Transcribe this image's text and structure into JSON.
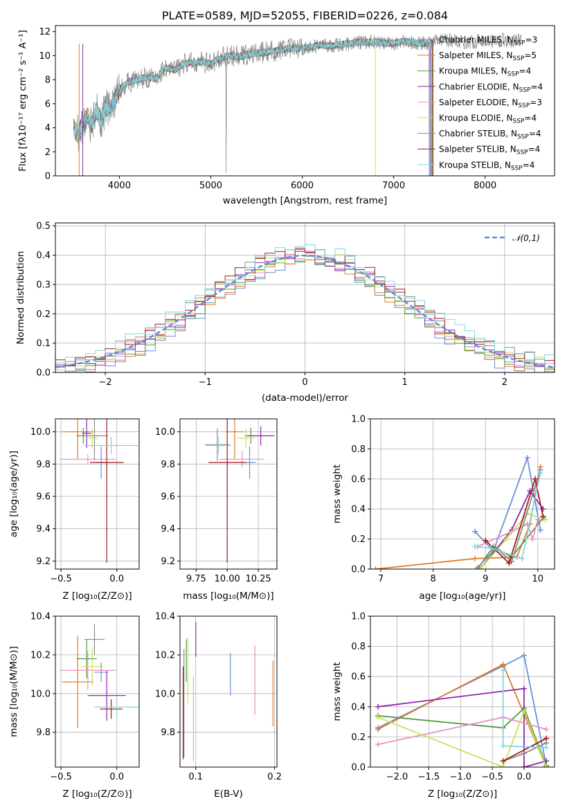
{
  "colors": [
    "#1f77b4",
    "#ff7f0e",
    "#2ca02c",
    "#d62728",
    "#9467bd",
    "#8c564b",
    "#e377c2",
    "#7f7f7f",
    "#bcbd22",
    "#17becf"
  ],
  "ssp_colors": [
    "#6b8fd8",
    "#e07b2c",
    "#4e9a3e",
    "#8e24aa",
    "#e88fc4",
    "#c8e25a",
    "#8a8a8a",
    "#a11a1a",
    "#7fd6e0"
  ],
  "chart_data": [
    {
      "id": "spectrum",
      "type": "line",
      "title": "PLATE=0589, MJD=52055, FIBERID=0226, z=0.084",
      "xlabel": "wavelength [Angstrom, rest frame]",
      "ylabel": "Flux [fλ10⁻¹⁷ erg cm⁻² s⁻¹ A⁻¹]",
      "xlim": [
        3300,
        8760
      ],
      "ylim": [
        0,
        12.5
      ],
      "xticks": [
        4000,
        5000,
        6000,
        7000,
        8000
      ],
      "yticks": [
        0,
        2,
        4,
        6,
        8,
        10,
        12
      ],
      "series": [
        {
          "name": "Chabrier MILES, N_SSP=3",
          "label_main": "Chabrier MILES, N",
          "label_sub": "SSP",
          "label_tail": "=3"
        },
        {
          "name": "Salpeter MILES, N_SSP=5",
          "label_main": "Salpeter MILES, N",
          "label_sub": "SSP",
          "label_tail": "=5"
        },
        {
          "name": "Kroupa MILES, N_SSP=4",
          "label_main": "Kroupa MILES, N",
          "label_sub": "SSP",
          "label_tail": "=4"
        },
        {
          "name": "Chabrier ELODIE, N_SSP=4",
          "label_main": "Chabrier ELODIE, N",
          "label_sub": "SSP",
          "label_tail": "=4"
        },
        {
          "name": "Salpeter ELODIE, N_SSP=3",
          "label_main": "Salpeter ELODIE, N",
          "label_sub": "SSP",
          "label_tail": "=3"
        },
        {
          "name": "Kroupa ELODIE, N_SSP=4",
          "label_main": "Kroupa ELODIE, N",
          "label_sub": "SSP",
          "label_tail": "=4"
        },
        {
          "name": "Chabrier STELIB, N_SSP=4",
          "label_main": "Chabrier STELIB, N",
          "label_sub": "SSP",
          "label_tail": "=4"
        },
        {
          "name": "Salpeter STELIB, N_SSP=4",
          "label_main": "Salpeter STELIB, N",
          "label_sub": "SSP",
          "label_tail": "=4"
        },
        {
          "name": "Kroupa STELIB, N_SSP=4",
          "label_main": "Kroupa STELIB, N",
          "label_sub": "SSP",
          "label_tail": "=4"
        }
      ],
      "data_x": [
        3500,
        3550,
        3600,
        3650,
        3700,
        3750,
        3800,
        3850,
        3900,
        3950,
        4000,
        4100,
        4200,
        4300,
        4400,
        4500,
        4600,
        4700,
        4800,
        4900,
        5000,
        5100,
        5200,
        5300,
        5400,
        5500,
        5600,
        5700,
        5800,
        5900,
        6000,
        6100,
        6200,
        6300,
        6400,
        6500,
        6600,
        6700,
        6800,
        6900,
        7000,
        7100,
        7200,
        7300,
        7400,
        7500,
        7600,
        7700,
        7800,
        7900,
        8000,
        8100,
        8200,
        8300,
        8400
      ],
      "data_y": [
        4.0,
        3.5,
        4.2,
        5.0,
        4.0,
        5.5,
        4.5,
        5.8,
        5.5,
        6.3,
        7.2,
        7.8,
        8.0,
        8.2,
        8.1,
        9.0,
        8.8,
        9.3,
        9.4,
        9.5,
        9.3,
        9.8,
        10.0,
        9.9,
        10.1,
        10.2,
        10.3,
        10.4,
        10.5,
        10.6,
        10.6,
        10.7,
        10.9,
        10.8,
        10.9,
        11.0,
        11.1,
        11.1,
        11.2,
        11.0,
        11.0,
        11.2,
        11.1,
        11.0,
        11.1,
        11.2,
        11.3,
        11.2,
        11.1,
        11.2,
        11.3,
        11.2,
        11.3,
        11.2,
        11.3
      ],
      "model_end_x": [
        7430,
        7430,
        7420,
        7410,
        7400,
        7400,
        7390,
        7430,
        7400
      ],
      "annotations": [
        {
          "text": "spike at ~5170 and ~6800"
        }
      ]
    },
    {
      "id": "residuals",
      "type": "histogram",
      "xlabel": "(data-model)/error",
      "ylabel": "Normed distribution",
      "xlim": [
        -2.5,
        2.5
      ],
      "ylim": [
        0,
        0.51
      ],
      "xticks": [
        -2,
        -1,
        0,
        1,
        2
      ],
      "yticks": [
        0.0,
        0.1,
        0.2,
        0.3,
        0.4,
        0.5
      ],
      "legend": "𝒩(0,1)",
      "bin_width": 0.1,
      "gaussian": {
        "mean": 0,
        "sigma": 1
      }
    },
    {
      "id": "age_vs_z",
      "type": "errorbar",
      "xlabel": "Z [log₁₀(Z/Z⊙)]",
      "ylabel": "age  [log₁₀(age/yr)]",
      "xlim": [
        -0.55,
        0.2
      ],
      "ylim": [
        9.15,
        10.08
      ],
      "xticks": [
        -0.5,
        0.0
      ],
      "xticklabels": [
        "−0.5",
        "0.0"
      ],
      "yticks": [
        9.2,
        9.4,
        9.6,
        9.8,
        10.0
      ],
      "points": [
        {
          "x": -0.14,
          "y": 9.81,
          "xe": 0.06,
          "ye": 0.1
        },
        {
          "x": -0.35,
          "y": 10.0,
          "xe": 0.14,
          "ye": 0.17
        },
        {
          "x": -0.3,
          "y": 9.975,
          "xe": 0.06,
          "ye": 0.05
        },
        {
          "x": -0.27,
          "y": 9.99,
          "xe": 0.04,
          "ye": 0.09
        },
        {
          "x": -0.26,
          "y": 9.83,
          "xe": 0.25,
          "ye": 0.03
        },
        {
          "x": -0.22,
          "y": 9.96,
          "xe": 0.05,
          "ye": 0.06
        },
        {
          "x": -0.2,
          "y": 9.975,
          "xe": 0.12,
          "ye": 0.15
        },
        {
          "x": -0.09,
          "y": 9.81,
          "xe": 0.15,
          "ye": 0.62
        },
        {
          "x": -0.05,
          "y": 9.915,
          "xe": 0.24,
          "ye": 0.055
        }
      ]
    },
    {
      "id": "age_vs_mass",
      "type": "errorbar",
      "xlabel": "mass [log₁₀(M/M⊙)]",
      "xlim": [
        9.62,
        10.4
      ],
      "ylim": [
        9.15,
        10.08
      ],
      "xticks": [
        9.75,
        10.0,
        10.25
      ],
      "xticklabels": [
        "9.75",
        "10.00",
        "10.25"
      ],
      "yticks": [
        9.2,
        9.4,
        9.6,
        9.8,
        10.0
      ],
      "points": [
        {
          "x": 10.18,
          "y": 9.81,
          "xe": 0.05,
          "ye": 0.1
        },
        {
          "x": 10.06,
          "y": 10.0,
          "xe": 0.07,
          "ye": 0.17
        },
        {
          "x": 10.19,
          "y": 9.975,
          "xe": 0.05,
          "ye": 0.05
        },
        {
          "x": 10.27,
          "y": 9.975,
          "xe": 0.11,
          "ye": 0.06
        },
        {
          "x": 10.12,
          "y": 9.83,
          "xe": 0.18,
          "ye": 0.05
        },
        {
          "x": 10.15,
          "y": 9.96,
          "xe": 0.07,
          "ye": 0.06
        },
        {
          "x": 9.92,
          "y": 9.92,
          "xe": 0.1,
          "ye": 0.1
        },
        {
          "x": 10.0,
          "y": 9.81,
          "xe": 0.15,
          "ye": 0.62
        },
        {
          "x": 9.93,
          "y": 9.915,
          "xe": 0.1,
          "ye": 0.05
        }
      ]
    },
    {
      "id": "weight_vs_age",
      "type": "line",
      "xlabel": "age  [log₁₀(age/yr)]",
      "ylabel": "mass weight",
      "xlim": [
        6.8,
        10.32
      ],
      "ylim": [
        0,
        1.0
      ],
      "xticks": [
        7,
        8,
        9,
        10
      ],
      "yticks": [
        0.0,
        0.2,
        0.4,
        0.6,
        0.8,
        1.0
      ],
      "series": [
        {
          "x": [
            8.8,
            9.15,
            9.8,
            10.05
          ],
          "y": [
            0.25,
            0.12,
            0.74,
            0.26
          ]
        },
        {
          "x": [
            6.9,
            8.8,
            9.6,
            9.85,
            10.05
          ],
          "y": [
            0.0,
            0.07,
            0.08,
            0.3,
            0.68
          ]
        },
        {
          "x": [
            8.85,
            9.15,
            9.5,
            10.1
          ],
          "y": [
            0.0,
            0.15,
            0.08,
            0.34
          ]
        },
        {
          "x": [
            8.9,
            9.5,
            9.85,
            10.1
          ],
          "y": [
            0.0,
            0.26,
            0.52,
            0.4
          ]
        },
        {
          "x": [
            8.85,
            9.5,
            9.8,
            9.9,
            10.0
          ],
          "y": [
            0.15,
            0.25,
            0.3,
            0.2,
            0.33
          ]
        },
        {
          "x": [
            8.9,
            9.4,
            9.8,
            10.15
          ],
          "y": [
            0.0,
            0.2,
            0.37,
            0.33
          ]
        },
        {
          "x": [
            8.85,
            9.2,
            9.5,
            10.05
          ],
          "y": [
            0.01,
            0.14,
            0.05,
            0.66
          ]
        },
        {
          "x": [
            9.0,
            9.45,
            9.95,
            10.1
          ],
          "y": [
            0.19,
            0.04,
            0.6,
            0.35
          ]
        },
        {
          "x": [
            8.8,
            9.1,
            9.7,
            10.05
          ],
          "y": [
            0.15,
            0.14,
            0.07,
            0.64
          ]
        }
      ]
    },
    {
      "id": "mass_vs_z",
      "type": "errorbar",
      "xlabel": "Z [log₁₀(Z/Z⊙)]",
      "ylabel": "mass [log₁₀(M/M⊙)]",
      "xlim": [
        -0.55,
        0.2
      ],
      "ylim": [
        9.62,
        10.4
      ],
      "xticks": [
        -0.5,
        0.0
      ],
      "xticklabels": [
        "−0.5",
        "0.0"
      ],
      "yticks": [
        9.8,
        10.0,
        10.2,
        10.4
      ],
      "points": [
        {
          "x": -0.14,
          "y": 10.11,
          "xe": 0.06,
          "ye": 0.05
        },
        {
          "x": -0.35,
          "y": 10.06,
          "xe": 0.14,
          "ye": 0.24
        },
        {
          "x": -0.27,
          "y": 10.18,
          "xe": 0.09,
          "ye": 0.1
        },
        {
          "x": -0.09,
          "y": 9.99,
          "xe": 0.17,
          "ye": 0.13
        },
        {
          "x": -0.26,
          "y": 10.12,
          "xe": 0.25,
          "ye": 0.1
        },
        {
          "x": -0.22,
          "y": 10.14,
          "xe": 0.1,
          "ye": 0.1
        },
        {
          "x": -0.2,
          "y": 10.28,
          "xe": 0.09,
          "ye": 0.08
        },
        {
          "x": -0.05,
          "y": 9.92,
          "xe": 0.1,
          "ye": 0.05
        },
        {
          "x": 0.0,
          "y": 9.93,
          "xe": 0.2,
          "ye": 0.05
        }
      ]
    },
    {
      "id": "mass_vs_ebv",
      "type": "errorbar",
      "xlabel": "E(B-V)",
      "xlim": [
        0.08,
        0.203
      ],
      "ylim": [
        9.62,
        10.4
      ],
      "xticks": [
        0.1,
        0.2
      ],
      "xticklabels": [
        "0.1",
        "0.2"
      ],
      "yticks": [
        9.8,
        10.0,
        10.2,
        10.4
      ],
      "points": [
        {
          "x": 0.144,
          "y": 10.1,
          "ye": 0.11
        },
        {
          "x": 0.198,
          "y": 10.0,
          "ye": 0.17
        },
        {
          "x": 0.088,
          "y": 10.17,
          "ye": 0.11
        },
        {
          "x": 0.1,
          "y": 10.28,
          "ye": 0.09
        },
        {
          "x": 0.175,
          "y": 10.07,
          "ye": 0.18
        },
        {
          "x": 0.09,
          "y": 10.12,
          "ye": 0.17
        },
        {
          "x": 0.085,
          "y": 9.95,
          "ye": 0.28
        },
        {
          "x": 0.084,
          "y": 9.9,
          "ye": 0.24
        },
        {
          "x": 0.097,
          "y": 9.87,
          "ye": 0.22
        }
      ]
    },
    {
      "id": "weight_vs_z",
      "type": "line",
      "xlabel": "Z [log₁₀(Z/Z⊙)]",
      "ylabel": "mass weight",
      "xlim": [
        -2.42,
        0.48
      ],
      "ylim": [
        0,
        1.0
      ],
      "xticks": [
        -2.0,
        -1.5,
        -1.0,
        -0.5,
        0.0
      ],
      "xticklabels": [
        "−2.0",
        "−1.5",
        "−1.0",
        "−0.5",
        "0.0"
      ],
      "yticks": [
        0.0,
        0.2,
        0.4,
        0.6,
        0.8,
        1.0
      ],
      "series": [
        {
          "x": [
            -2.3,
            -0.33,
            0.0,
            0.35
          ],
          "y": [
            0.26,
            0.67,
            0.74,
            0.01
          ]
        },
        {
          "x": [
            -2.3,
            -0.33,
            0.35
          ],
          "y": [
            0.25,
            0.68,
            0.0
          ]
        },
        {
          "x": [
            -2.3,
            -0.33,
            0.0,
            0.35
          ],
          "y": [
            0.34,
            0.26,
            0.39,
            0.01
          ]
        },
        {
          "x": [
            -2.3,
            0.0,
            0.0,
            0.35
          ],
          "y": [
            0.4,
            0.52,
            0.0,
            0.04
          ]
        },
        {
          "x": [
            -2.3,
            -0.33,
            0.35
          ],
          "y": [
            0.15,
            0.33,
            0.25
          ]
        },
        {
          "x": [
            -2.3,
            -0.33,
            0.0,
            0.35
          ],
          "y": [
            0.33,
            0.0,
            0.37,
            0.0
          ]
        },
        {
          "x": [
            -0.33,
            0.0,
            0.35
          ],
          "y": [
            0.04,
            0.09,
            0.16
          ]
        },
        {
          "x": [
            -0.33,
            0.35
          ],
          "y": [
            0.04,
            0.19
          ]
        },
        {
          "x": [
            -0.33,
            -0.33,
            0.35
          ],
          "y": [
            0.64,
            0.14,
            0.13
          ]
        }
      ]
    }
  ]
}
